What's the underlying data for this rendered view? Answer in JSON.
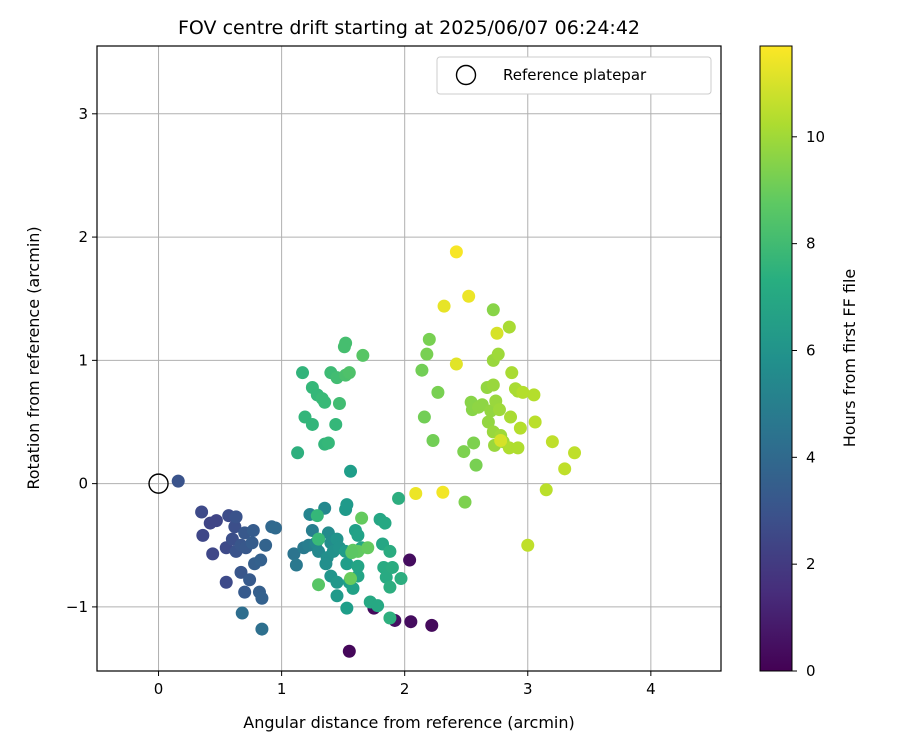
{
  "chart_data": {
    "type": "scatter",
    "title": "FOV centre drift starting at 2025/06/07 06:24:42",
    "xlabel": "Angular distance from reference (arcmin)",
    "ylabel": "Rotation from reference (arcmin)",
    "xlim": [
      -0.5,
      4.57
    ],
    "ylim": [
      -1.52,
      3.55
    ],
    "xticks": [
      "0",
      "1",
      "2",
      "3",
      "4"
    ],
    "yticks": [
      "−1",
      "0",
      "1",
      "2",
      "3"
    ],
    "grid": true,
    "colormap": "viridis",
    "colorbar": {
      "label": "Hours from first FF file",
      "min": 0,
      "max": 11.7,
      "ticks": [
        "0",
        "2",
        "4",
        "6",
        "8",
        "10"
      ]
    },
    "legend": {
      "position": "top-right",
      "entries": [
        "Reference platepar"
      ]
    },
    "reference": {
      "x": 0,
      "y": 0
    },
    "points": [
      [
        1.55,
        -1.36,
        0.2
      ],
      [
        2.22,
        -1.15,
        0.3
      ],
      [
        2.05,
        -1.12,
        0.4
      ],
      [
        1.92,
        -1.11,
        0.5
      ],
      [
        1.75,
        -1.01,
        0.3
      ],
      [
        2.04,
        -0.62,
        0.4
      ],
      [
        0.16,
        0.02,
        3.0
      ],
      [
        0.35,
        -0.23,
        2.6
      ],
      [
        0.36,
        -0.42,
        2.5
      ],
      [
        0.42,
        -0.32,
        2.4
      ],
      [
        0.47,
        -0.3,
        2.4
      ],
      [
        0.44,
        -0.57,
        2.5
      ],
      [
        0.55,
        -0.52,
        2.6
      ],
      [
        0.57,
        -0.26,
        2.7
      ],
      [
        0.55,
        -0.8,
        2.6
      ],
      [
        0.6,
        -0.45,
        2.8
      ],
      [
        0.62,
        -0.35,
        2.8
      ],
      [
        0.63,
        -0.27,
        3.0
      ],
      [
        0.63,
        -0.55,
        3.0
      ],
      [
        0.67,
        -0.72,
        3.1
      ],
      [
        0.67,
        -0.5,
        3.1
      ],
      [
        0.7,
        -0.4,
        3.2
      ],
      [
        0.71,
        -0.52,
        3.2
      ],
      [
        0.74,
        -0.78,
        3.3
      ],
      [
        0.7,
        -0.88,
        3.3
      ],
      [
        0.76,
        -0.48,
        3.4
      ],
      [
        0.77,
        -0.38,
        3.4
      ],
      [
        0.78,
        -0.65,
        3.5
      ],
      [
        0.82,
        -0.88,
        3.5
      ],
      [
        0.84,
        -0.93,
        3.6
      ],
      [
        0.83,
        -0.62,
        3.6
      ],
      [
        0.87,
        -0.5,
        3.7
      ],
      [
        0.92,
        -0.35,
        3.9
      ],
      [
        0.95,
        -0.36,
        4.0
      ],
      [
        0.68,
        -1.05,
        4.2
      ],
      [
        0.84,
        -1.18,
        4.3
      ],
      [
        1.1,
        -0.57,
        4.5
      ],
      [
        1.12,
        -0.66,
        4.7
      ],
      [
        1.18,
        -0.52,
        4.8
      ],
      [
        1.22,
        -0.5,
        5.0
      ],
      [
        1.25,
        -0.38,
        5.0
      ],
      [
        1.27,
        -0.5,
        5.1
      ],
      [
        1.23,
        -0.25,
        5.3
      ],
      [
        1.28,
        -0.48,
        5.4
      ],
      [
        1.3,
        -0.55,
        5.5
      ],
      [
        1.35,
        -0.2,
        5.5
      ],
      [
        1.38,
        -0.4,
        5.6
      ],
      [
        1.4,
        -0.48,
        5.7
      ],
      [
        1.37,
        -0.6,
        5.8
      ],
      [
        1.36,
        -0.65,
        5.8
      ],
      [
        1.42,
        -0.55,
        5.9
      ],
      [
        1.45,
        -0.45,
        6.0
      ],
      [
        1.47,
        -0.52,
        6.0
      ],
      [
        1.4,
        -0.75,
        6.1
      ],
      [
        1.45,
        -0.8,
        6.2
      ],
      [
        1.45,
        -0.91,
        6.3
      ],
      [
        1.52,
        -0.21,
        6.3
      ],
      [
        1.53,
        -0.17,
        6.3
      ],
      [
        1.52,
        -0.55,
        6.4
      ],
      [
        1.53,
        -0.65,
        6.5
      ],
      [
        1.55,
        -0.8,
        6.5
      ],
      [
        1.53,
        -1.01,
        6.5
      ],
      [
        1.6,
        -0.38,
        6.6
      ],
      [
        1.62,
        -0.42,
        6.7
      ],
      [
        1.58,
        -0.85,
        6.7
      ],
      [
        1.62,
        -0.75,
        6.8
      ],
      [
        1.62,
        -0.67,
        6.8
      ],
      [
        1.65,
        -0.52,
        6.9
      ],
      [
        1.72,
        -0.96,
        7.0
      ],
      [
        1.78,
        -0.99,
        7.0
      ],
      [
        1.8,
        -0.29,
        6.9
      ],
      [
        1.82,
        -0.49,
        6.9
      ],
      [
        1.84,
        -0.32,
        7.0
      ],
      [
        1.83,
        -0.68,
        7.1
      ],
      [
        1.85,
        -0.76,
        7.1
      ],
      [
        1.88,
        -0.55,
        7.2
      ],
      [
        1.9,
        -0.68,
        7.2
      ],
      [
        1.95,
        -0.12,
        7.3
      ],
      [
        1.97,
        -0.77,
        7.3
      ],
      [
        1.88,
        -0.84,
        7.3
      ],
      [
        1.88,
        -1.09,
        7.4
      ],
      [
        1.29,
        -0.26,
        7.8
      ],
      [
        1.3,
        -0.45,
        7.9
      ],
      [
        1.56,
        0.1,
        6.5
      ],
      [
        1.13,
        0.25,
        7.4
      ],
      [
        1.17,
        0.9,
        7.6
      ],
      [
        1.19,
        0.54,
        7.7
      ],
      [
        1.25,
        0.78,
        7.8
      ],
      [
        1.25,
        0.48,
        7.7
      ],
      [
        1.29,
        0.72,
        7.8
      ],
      [
        1.33,
        0.69,
        7.9
      ],
      [
        1.35,
        0.66,
        7.9
      ],
      [
        1.35,
        0.32,
        7.7
      ],
      [
        1.38,
        0.33,
        7.8
      ],
      [
        1.4,
        0.9,
        8.0
      ],
      [
        1.44,
        0.48,
        7.8
      ],
      [
        1.45,
        0.86,
        8.1
      ],
      [
        1.47,
        0.65,
        8.1
      ],
      [
        1.51,
        1.11,
        8.2
      ],
      [
        1.52,
        1.14,
        8.2
      ],
      [
        1.52,
        0.88,
        8.3
      ],
      [
        1.55,
        0.9,
        8.4
      ],
      [
        1.66,
        1.04,
        8.6
      ],
      [
        1.3,
        -0.82,
        8.6
      ],
      [
        1.58,
        -0.54,
        8.8
      ],
      [
        1.62,
        -0.55,
        8.8
      ],
      [
        1.65,
        -0.28,
        8.9
      ],
      [
        1.7,
        -0.52,
        8.9
      ],
      [
        1.56,
        -0.77,
        9.0
      ],
      [
        1.57,
        -0.56,
        8.7
      ],
      [
        2.14,
        0.92,
        9.2
      ],
      [
        2.2,
        1.17,
        9.3
      ],
      [
        2.18,
        1.05,
        9.3
      ],
      [
        2.16,
        0.54,
        9.2
      ],
      [
        2.23,
        0.35,
        9.2
      ],
      [
        2.27,
        0.74,
        9.3
      ],
      [
        2.48,
        0.26,
        9.4
      ],
      [
        2.49,
        -0.15,
        9.4
      ],
      [
        2.56,
        0.33,
        9.4
      ],
      [
        2.58,
        0.15,
        9.3
      ],
      [
        2.54,
        0.66,
        9.6
      ],
      [
        2.55,
        0.6,
        9.6
      ],
      [
        2.6,
        0.62,
        9.7
      ],
      [
        2.63,
        0.64,
        9.7
      ],
      [
        2.67,
        0.78,
        9.8
      ],
      [
        2.7,
        0.59,
        9.8
      ],
      [
        2.68,
        0.5,
        9.8
      ],
      [
        2.72,
        0.42,
        9.9
      ],
      [
        2.73,
        0.31,
        9.9
      ],
      [
        2.72,
        1.41,
        9.6
      ],
      [
        2.72,
        1.0,
        9.9
      ],
      [
        2.76,
        1.05,
        10.0
      ],
      [
        2.72,
        0.8,
        9.9
      ],
      [
        2.74,
        0.67,
        9.9
      ],
      [
        2.77,
        0.6,
        10.0
      ],
      [
        2.78,
        0.39,
        10.0
      ],
      [
        2.8,
        0.34,
        10.0
      ],
      [
        2.85,
        1.27,
        10.2
      ],
      [
        2.87,
        0.9,
        10.2
      ],
      [
        2.9,
        0.77,
        10.2
      ],
      [
        2.92,
        0.75,
        10.2
      ],
      [
        2.86,
        0.54,
        10.2
      ],
      [
        2.85,
        0.29,
        10.3
      ],
      [
        2.92,
        0.29,
        10.3
      ],
      [
        2.94,
        0.45,
        10.4
      ],
      [
        2.96,
        0.74,
        10.4
      ],
      [
        3.05,
        0.72,
        10.4
      ],
      [
        3.06,
        0.5,
        10.5
      ],
      [
        3.0,
        -0.5,
        10.6
      ],
      [
        3.15,
        -0.05,
        10.5
      ],
      [
        3.2,
        0.34,
        10.6
      ],
      [
        3.3,
        0.12,
        10.6
      ],
      [
        3.38,
        0.25,
        10.6
      ],
      [
        2.32,
        1.44,
        11.3
      ],
      [
        2.42,
        1.88,
        11.6
      ],
      [
        2.52,
        1.52,
        11.4
      ],
      [
        2.42,
        0.97,
        11.2
      ],
      [
        2.75,
        1.22,
        11.0
      ],
      [
        2.78,
        0.35,
        11.0
      ],
      [
        2.31,
        -0.07,
        11.5
      ],
      [
        2.09,
        -0.08,
        11.4
      ]
    ]
  }
}
